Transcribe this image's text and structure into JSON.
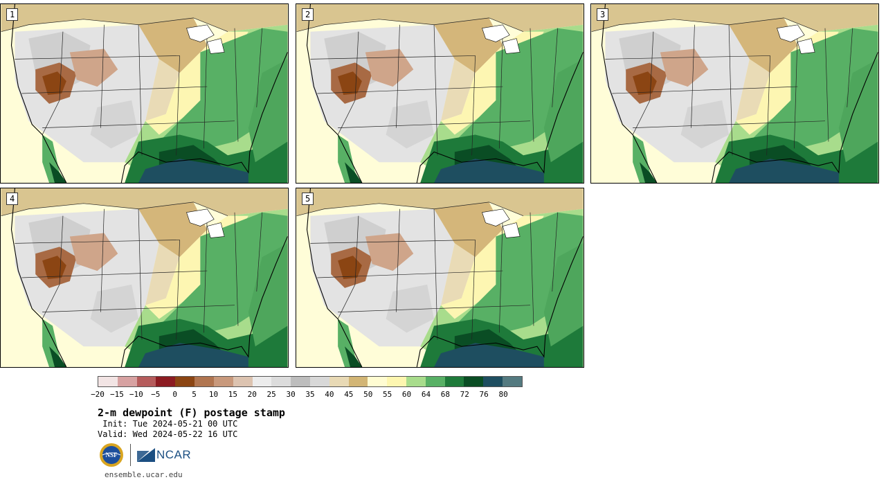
{
  "panels": [
    {
      "label": "1"
    },
    {
      "label": "2"
    },
    {
      "label": "3"
    },
    {
      "label": "4"
    },
    {
      "label": "5"
    }
  ],
  "colorbar": {
    "colors": [
      "#f2e4e4",
      "#d7a2a2",
      "#b55c5c",
      "#8c1c22",
      "#8b4513",
      "#b07550",
      "#c8997c",
      "#dcc3b0",
      "#ececec",
      "#dcdcdc",
      "#bdbdbd",
      "#d8d8d8",
      "#e8d9b5",
      "#d2b575",
      "#fffcd2",
      "#fdf6b0",
      "#a8dc8c",
      "#58b065",
      "#1e7a3a",
      "#0a4d24",
      "#1e4e60",
      "#547a80"
    ],
    "tick_labels": [
      "−20",
      "−15",
      "−10",
      "−5",
      "0",
      "5",
      "10",
      "15",
      "20",
      "25",
      "30",
      "35",
      "40",
      "45",
      "50",
      "55",
      "60",
      "64",
      "68",
      "72",
      "76",
      "80"
    ]
  },
  "title": "2-m dewpoint (F) postage stamp",
  "init": " Init: Tue 2024-05-21 00 UTC",
  "valid": "Valid: Wed 2024-05-22 16 UTC",
  "logo": {
    "ncar_text": "NCAR",
    "nsf_text": "NSF"
  },
  "url": "ensemble.ucar.edu"
}
